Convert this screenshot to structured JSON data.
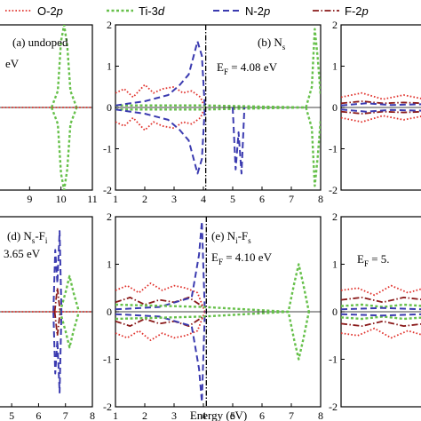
{
  "legend": [
    {
      "name": "O-2p",
      "base": "O-2",
      "sup": "p",
      "color": "#e0302a",
      "dash": "1.6,2.2",
      "width": 1.8
    },
    {
      "name": "Ti-3d",
      "base": "Ti-3",
      "sup": "d",
      "color": "#66c04a",
      "dash": "3,2.5",
      "width": 2.4
    },
    {
      "name": "N-2p",
      "base": "N-2",
      "sup": "p",
      "color": "#3b3bb0",
      "dash": "7,4",
      "width": 2.0
    },
    {
      "name": "F-2p",
      "base": "F-2",
      "sup": "p",
      "color": "#8a1a1a",
      "dash": "7,2.5,1.5,2.5",
      "width": 1.8
    }
  ],
  "xlabel": "Energy (eV)",
  "chart_data": [
    {
      "type": "line",
      "panel": "(a) undoped",
      "note": "eV",
      "xlim": [
        8,
        11
      ],
      "ylim": [
        -2,
        2
      ],
      "xticks": [
        9,
        10,
        11
      ],
      "yticks": [],
      "ef": null,
      "series": [
        {
          "name": "Ti-3d",
          "x": [
            9.7,
            9.9,
            10.0,
            10.1,
            10.2,
            10.3,
            10.5
          ],
          "y": [
            0.0,
            0.4,
            1.6,
            2.0,
            1.5,
            0.4,
            0.0
          ],
          "mirror": true
        },
        {
          "name": "O-2p",
          "x": [
            8.0,
            11.0
          ],
          "y": [
            0.0,
            0.0
          ],
          "mirror": false
        }
      ]
    },
    {
      "type": "line",
      "panel": "(b) N",
      "sub": "s",
      "note": "E_F = 4.08 eV",
      "xlim": [
        1,
        8
      ],
      "ylim": [
        -2,
        2
      ],
      "xticks": [
        1,
        2,
        3,
        4,
        5,
        6,
        7,
        8
      ],
      "yticks": [
        -2,
        -1,
        0,
        1,
        2
      ],
      "ef": 4.08,
      "series": [
        {
          "name": "O-2p",
          "x": [
            1.0,
            1.3,
            1.6,
            2.0,
            2.3,
            2.6,
            3.0,
            3.3,
            3.6,
            3.9,
            4.05
          ],
          "y": [
            0.35,
            0.45,
            0.25,
            0.55,
            0.35,
            0.45,
            0.5,
            0.35,
            0.4,
            0.25,
            0.0
          ],
          "mirror": true
        },
        {
          "name": "Ti-3d",
          "x": [
            1.0,
            4.0,
            7.5,
            7.7,
            7.8,
            7.9,
            8.0
          ],
          "y": [
            0.05,
            0.05,
            0.0,
            0.5,
            1.9,
            1.2,
            0.3
          ],
          "mirror": true
        },
        {
          "name": "N-2p",
          "x": [
            1.0,
            2.0,
            2.8,
            3.2,
            3.5,
            3.8,
            3.95,
            4.05
          ],
          "y": [
            0.05,
            0.15,
            0.3,
            0.55,
            0.8,
            1.6,
            1.25,
            0.0
          ],
          "mirror": true
        },
        {
          "name": "N-2p",
          "x": [
            5.0,
            5.1,
            5.2,
            5.3,
            5.4
          ],
          "y": [
            0.0,
            -1.5,
            -0.6,
            -1.6,
            0.0
          ],
          "mirror": false
        }
      ]
    },
    {
      "type": "line",
      "panel": "",
      "note": "",
      "xlim": [
        1,
        3
      ],
      "ylim": [
        -2,
        2
      ],
      "xticks": [],
      "yticks": [
        -2,
        -1,
        0,
        1,
        2
      ],
      "ef": null,
      "series": [
        {
          "name": "O-2p",
          "x": [
            1.0,
            1.5,
            2.0,
            2.5,
            3.0
          ],
          "y": [
            0.25,
            0.35,
            0.2,
            0.3,
            0.2
          ],
          "mirror": true
        },
        {
          "name": "F-2p",
          "x": [
            1.0,
            1.5,
            2.0,
            2.5,
            3.0
          ],
          "y": [
            0.1,
            0.15,
            0.1,
            0.12,
            0.1
          ],
          "mirror": true
        },
        {
          "name": "N-2p",
          "x": [
            1.0,
            1.6,
            2.2,
            3.0
          ],
          "y": [
            0.05,
            0.1,
            0.06,
            0.08
          ],
          "mirror": true
        }
      ]
    },
    {
      "type": "line",
      "panel": "(d) N",
      "sub": "s",
      "panel2": "-F",
      "sub2": "i",
      "note": "3.65 eV",
      "xlim": [
        4.5,
        8
      ],
      "ylim": [
        -2,
        2
      ],
      "xticks": [
        5,
        6,
        7,
        8
      ],
      "yticks": [],
      "ef": null,
      "series": [
        {
          "name": "Ti-3d",
          "x": [
            6.8,
            7.0,
            7.15,
            7.3,
            7.5
          ],
          "y": [
            0.0,
            0.4,
            0.75,
            0.4,
            0.0
          ],
          "mirror": true
        },
        {
          "name": "N-2p",
          "x": [
            6.55,
            6.62,
            6.7,
            6.78,
            6.85
          ],
          "y": [
            0.0,
            1.3,
            0.6,
            1.7,
            0.0
          ],
          "mirror": true
        },
        {
          "name": "F-2p",
          "x": [
            6.6,
            6.7,
            6.8
          ],
          "y": [
            0.0,
            0.5,
            0.0
          ],
          "mirror": true
        },
        {
          "name": "O-2p",
          "x": [
            4.5,
            8.0
          ],
          "y": [
            0.0,
            0.0
          ],
          "mirror": false
        }
      ]
    },
    {
      "type": "line",
      "panel": "(e) N",
      "sub": "i",
      "panel2": "-F",
      "sub2": "s",
      "note": "E_F = 4.10 eV",
      "xlim": [
        1,
        8
      ],
      "ylim": [
        -2,
        2
      ],
      "xticks": [
        1,
        2,
        3,
        4,
        5,
        6,
        7,
        8
      ],
      "yticks": [
        -2,
        -1,
        0,
        1,
        2
      ],
      "ef": 4.1,
      "series": [
        {
          "name": "O-2p",
          "x": [
            1.0,
            1.4,
            1.8,
            2.2,
            2.6,
            3.0,
            3.4,
            3.8,
            4.05
          ],
          "y": [
            0.45,
            0.55,
            0.4,
            0.6,
            0.45,
            0.55,
            0.5,
            0.4,
            0.0
          ],
          "mirror": true
        },
        {
          "name": "F-2p",
          "x": [
            1.0,
            1.5,
            2.0,
            2.5,
            3.0,
            3.5,
            4.0
          ],
          "y": [
            0.2,
            0.3,
            0.15,
            0.25,
            0.2,
            0.3,
            0.1
          ],
          "mirror": true
        },
        {
          "name": "N-2p",
          "x": [
            1.0,
            2.5,
            3.6,
            3.85,
            3.95,
            4.05
          ],
          "y": [
            0.05,
            0.1,
            0.3,
            1.2,
            1.9,
            0.0
          ],
          "mirror": true
        },
        {
          "name": "Ti-3d",
          "x": [
            1.0,
            4.0,
            6.9,
            7.1,
            7.25,
            7.4,
            7.6
          ],
          "y": [
            0.15,
            0.1,
            0.0,
            0.6,
            1.0,
            0.6,
            0.0
          ],
          "mirror": true
        }
      ]
    },
    {
      "type": "line",
      "panel": "",
      "note": "E_F = 5.",
      "xlim": [
        1,
        3
      ],
      "ylim": [
        -2,
        2
      ],
      "xticks": [],
      "yticks": [
        -2,
        -1,
        0,
        1,
        2
      ],
      "ef": null,
      "series": [
        {
          "name": "O-2p",
          "x": [
            1.0,
            1.4,
            1.8,
            2.2,
            2.6,
            3.0
          ],
          "y": [
            0.45,
            0.5,
            0.35,
            0.55,
            0.4,
            0.5
          ],
          "mirror": true
        },
        {
          "name": "F-2p",
          "x": [
            1.0,
            1.5,
            2.0,
            2.5,
            3.0
          ],
          "y": [
            0.25,
            0.3,
            0.2,
            0.3,
            0.25
          ],
          "mirror": true
        },
        {
          "name": "Ti-3d",
          "x": [
            1.0,
            1.5,
            2.0,
            2.5,
            3.0
          ],
          "y": [
            0.12,
            0.15,
            0.1,
            0.15,
            0.12
          ],
          "mirror": true
        },
        {
          "name": "N-2p",
          "x": [
            1.0,
            2.0,
            3.0
          ],
          "y": [
            0.05,
            0.08,
            0.05
          ],
          "mirror": true
        }
      ]
    }
  ]
}
